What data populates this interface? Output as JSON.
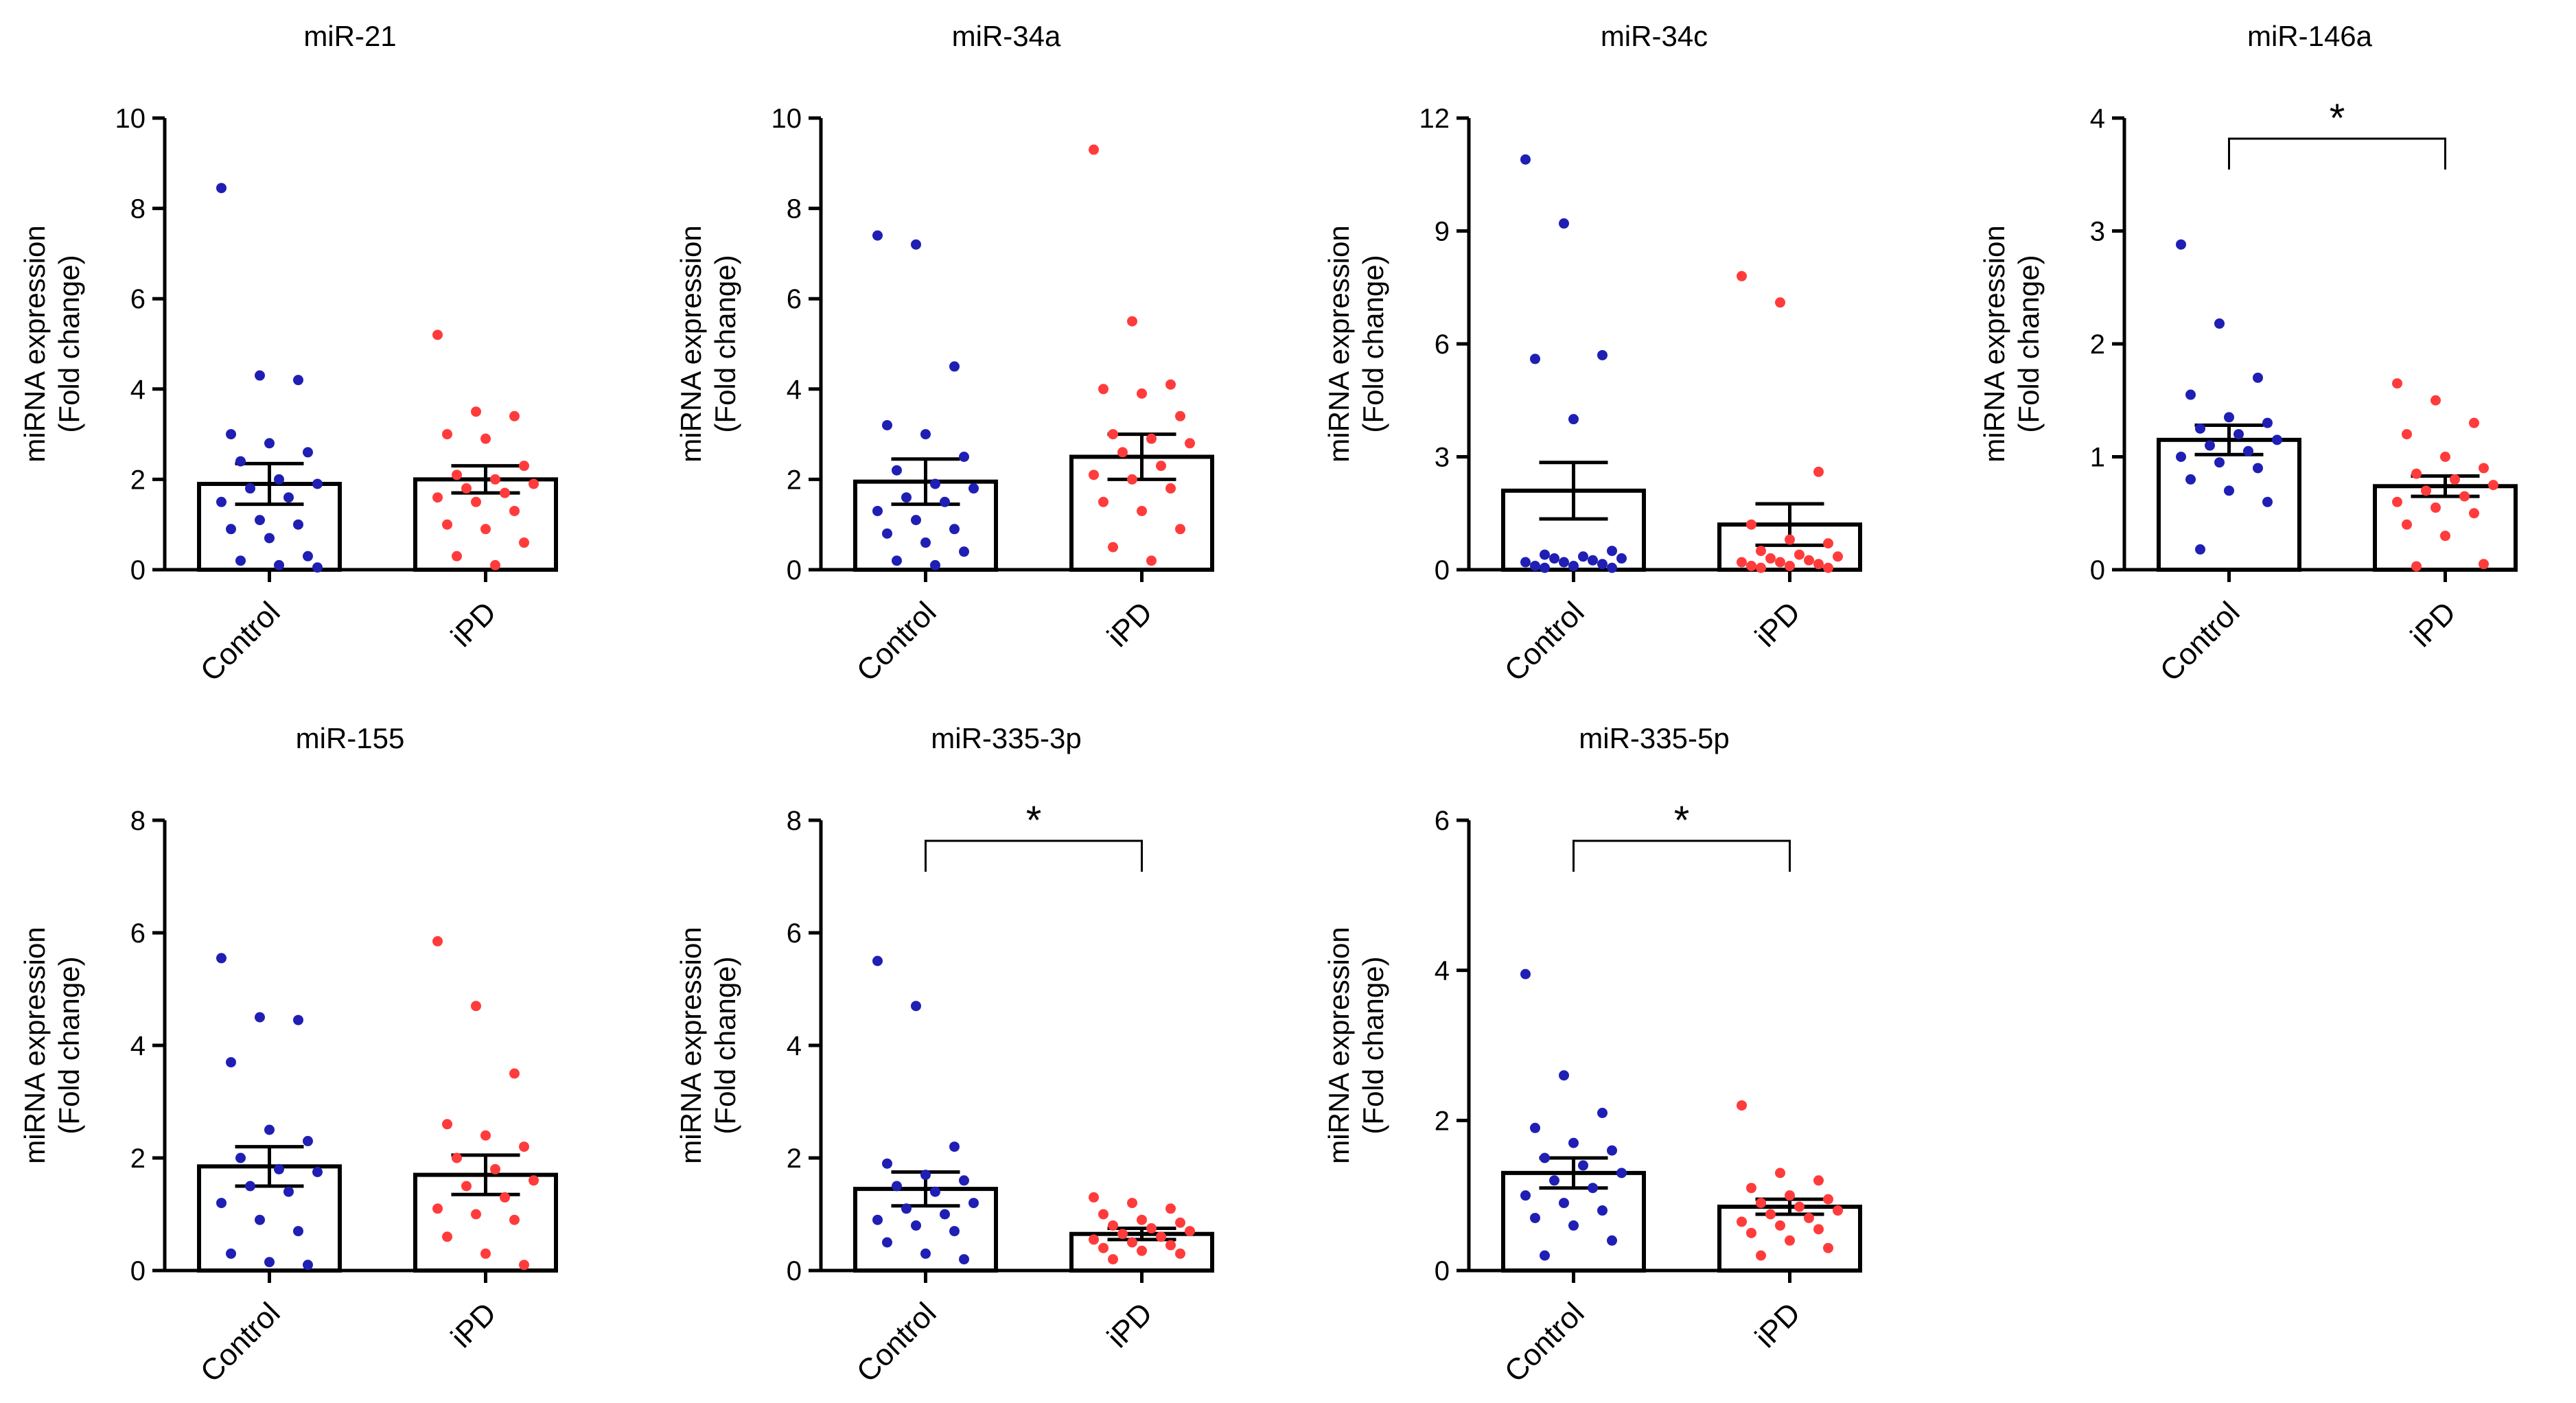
{
  "ylabel_line1": "miRNA expression",
  "ylabel_line2": "(Fold change)",
  "chart_data": [
    {
      "type": "bar",
      "title": "miR-21",
      "categories": [
        "Control",
        "iPD"
      ],
      "means": [
        1.9,
        2.0
      ],
      "sem": [
        0.45,
        0.3
      ],
      "ylim": [
        0,
        10
      ],
      "yticks": [
        0,
        2,
        4,
        6,
        8,
        10
      ],
      "significance": "",
      "points": [
        [
          8.45,
          4.3,
          4.2,
          3.0,
          2.8,
          2.6,
          2.4,
          2.0,
          1.9,
          1.8,
          1.6,
          1.5,
          1.1,
          1.0,
          0.9,
          0.7,
          0.3,
          0.2,
          0.1,
          0.05
        ],
        [
          5.2,
          3.5,
          3.4,
          3.0,
          2.9,
          2.3,
          2.1,
          2.0,
          1.9,
          1.8,
          1.7,
          1.6,
          1.5,
          1.3,
          1.0,
          0.9,
          0.6,
          0.3,
          0.1
        ]
      ],
      "colors": [
        "#1f1fb4",
        "#ff3b3b"
      ]
    },
    {
      "type": "bar",
      "title": "miR-34a",
      "categories": [
        "Control",
        "iPD"
      ],
      "means": [
        1.95,
        2.5
      ],
      "sem": [
        0.5,
        0.5
      ],
      "ylim": [
        0,
        10
      ],
      "yticks": [
        0,
        2,
        4,
        6,
        8,
        10
      ],
      "significance": "",
      "points": [
        [
          7.4,
          7.2,
          4.5,
          3.2,
          3.0,
          2.5,
          2.2,
          1.9,
          1.8,
          1.6,
          1.5,
          1.3,
          1.1,
          0.9,
          0.8,
          0.6,
          0.4,
          0.2,
          0.1
        ],
        [
          9.3,
          5.5,
          4.1,
          4.0,
          3.9,
          3.4,
          3.0,
          2.9,
          2.8,
          2.6,
          2.3,
          2.1,
          2.0,
          1.8,
          1.5,
          1.3,
          0.9,
          0.5,
          0.2
        ]
      ],
      "colors": [
        "#1f1fb4",
        "#ff3b3b"
      ]
    },
    {
      "type": "bar",
      "title": "miR-34c",
      "categories": [
        "Control",
        "iPD"
      ],
      "means": [
        2.1,
        1.2
      ],
      "sem": [
        0.75,
        0.55
      ],
      "ylim": [
        0,
        12
      ],
      "yticks": [
        0,
        3,
        6,
        9,
        12
      ],
      "significance": "",
      "points": [
        [
          10.9,
          9.2,
          5.7,
          5.6,
          4.0,
          0.5,
          0.4,
          0.35,
          0.3,
          0.3,
          0.25,
          0.2,
          0.2,
          0.15,
          0.1,
          0.1,
          0.05,
          0.05
        ],
        [
          7.8,
          7.1,
          2.6,
          1.2,
          0.8,
          0.7,
          0.5,
          0.4,
          0.35,
          0.3,
          0.25,
          0.2,
          0.2,
          0.15,
          0.1,
          0.1,
          0.05,
          0.05
        ]
      ],
      "colors": [
        "#1f1fb4",
        "#ff3b3b"
      ]
    },
    {
      "type": "bar",
      "title": "miR-146a",
      "categories": [
        "Control",
        "iPD"
      ],
      "means": [
        1.15,
        0.74
      ],
      "sem": [
        0.13,
        0.09
      ],
      "ylim": [
        0,
        4
      ],
      "yticks": [
        0,
        1,
        2,
        3,
        4
      ],
      "significance": "*",
      "points": [
        [
          2.88,
          2.18,
          1.7,
          1.55,
          1.35,
          1.3,
          1.25,
          1.2,
          1.15,
          1.1,
          1.05,
          1.0,
          0.95,
          0.9,
          0.8,
          0.7,
          0.6,
          0.18
        ],
        [
          1.65,
          1.5,
          1.3,
          1.2,
          1.0,
          0.9,
          0.85,
          0.8,
          0.75,
          0.7,
          0.65,
          0.6,
          0.55,
          0.5,
          0.4,
          0.3,
          0.05,
          0.03
        ]
      ],
      "colors": [
        "#1f1fb4",
        "#ff3b3b"
      ]
    },
    {
      "type": "bar",
      "title": "miR-155",
      "categories": [
        "Control",
        "iPD"
      ],
      "means": [
        1.85,
        1.7
      ],
      "sem": [
        0.35,
        0.35
      ],
      "ylim": [
        0,
        8
      ],
      "yticks": [
        0,
        2,
        4,
        6,
        8
      ],
      "significance": "",
      "points": [
        [
          5.55,
          4.5,
          4.45,
          3.7,
          2.5,
          2.3,
          2.0,
          1.8,
          1.75,
          1.5,
          1.4,
          1.2,
          0.9,
          0.7,
          0.3,
          0.15,
          0.1
        ],
        [
          5.85,
          4.7,
          3.5,
          2.6,
          2.4,
          2.2,
          2.0,
          1.8,
          1.6,
          1.5,
          1.3,
          1.1,
          1.0,
          0.9,
          0.6,
          0.3,
          0.1
        ]
      ],
      "colors": [
        "#1f1fb4",
        "#ff3b3b"
      ]
    },
    {
      "type": "bar",
      "title": "miR-335-3p",
      "categories": [
        "Control",
        "iPD"
      ],
      "means": [
        1.45,
        0.65
      ],
      "sem": [
        0.3,
        0.1
      ],
      "ylim": [
        0,
        8
      ],
      "yticks": [
        0,
        2,
        4,
        6,
        8
      ],
      "significance": "*",
      "points": [
        [
          5.5,
          4.7,
          2.2,
          1.9,
          1.7,
          1.6,
          1.5,
          1.4,
          1.2,
          1.1,
          1.0,
          0.9,
          0.8,
          0.7,
          0.5,
          0.3,
          0.2
        ],
        [
          1.3,
          1.2,
          1.1,
          1.0,
          0.9,
          0.85,
          0.8,
          0.75,
          0.7,
          0.65,
          0.6,
          0.55,
          0.5,
          0.45,
          0.4,
          0.35,
          0.3,
          0.2
        ]
      ],
      "colors": [
        "#1f1fb4",
        "#ff3b3b"
      ]
    },
    {
      "type": "bar",
      "title": "miR-335-5p",
      "categories": [
        "Control",
        "iPD"
      ],
      "means": [
        1.3,
        0.85
      ],
      "sem": [
        0.2,
        0.1
      ],
      "ylim": [
        0,
        6
      ],
      "yticks": [
        0,
        2,
        4,
        6
      ],
      "significance": "*",
      "points": [
        [
          3.95,
          2.6,
          2.1,
          1.9,
          1.7,
          1.6,
          1.5,
          1.4,
          1.3,
          1.2,
          1.1,
          1.0,
          0.9,
          0.8,
          0.7,
          0.6,
          0.4,
          0.2
        ],
        [
          2.2,
          1.3,
          1.2,
          1.1,
          1.0,
          0.95,
          0.9,
          0.85,
          0.8,
          0.75,
          0.7,
          0.65,
          0.6,
          0.55,
          0.5,
          0.4,
          0.3,
          0.2
        ]
      ],
      "colors": [
        "#1f1fb4",
        "#ff3b3b"
      ]
    }
  ]
}
